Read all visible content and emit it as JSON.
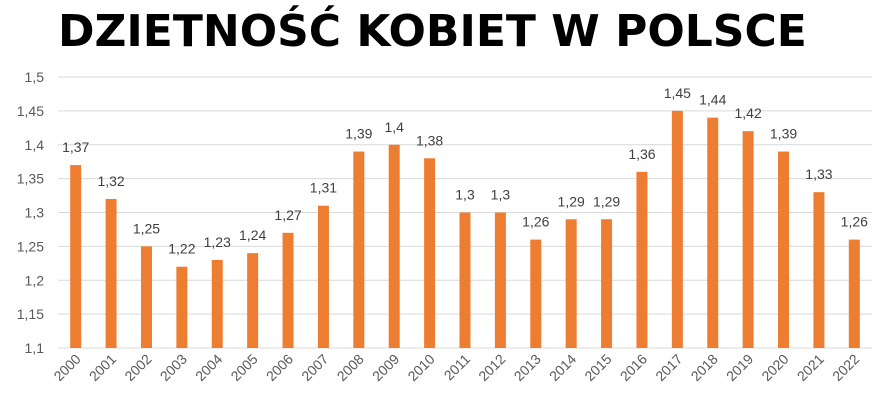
{
  "title": "DZIETNOŚĆ KOBIET W POLSCE",
  "chart_data": {
    "type": "bar",
    "title": "DZIETNOŚĆ KOBIET W POLSCE",
    "xlabel": "",
    "ylabel": "",
    "categories": [
      "2000",
      "2001",
      "2002",
      "2003",
      "2004",
      "2005",
      "2006",
      "2007",
      "2008",
      "2009",
      "2010",
      "2011",
      "2012",
      "2013",
      "2014",
      "2015",
      "2016",
      "2017",
      "2018",
      "2019",
      "2020",
      "2021",
      "2022"
    ],
    "values": [
      1.37,
      1.32,
      1.25,
      1.22,
      1.23,
      1.24,
      1.27,
      1.31,
      1.39,
      1.4,
      1.38,
      1.3,
      1.3,
      1.26,
      1.29,
      1.29,
      1.36,
      1.45,
      1.44,
      1.42,
      1.39,
      1.33,
      1.26
    ],
    "data_labels": [
      "1,37",
      "1,32",
      "1,25",
      "1,22",
      "1,23",
      "1,24",
      "1,27",
      "1,31",
      "1,39",
      "1,4",
      "1,38",
      "1,3",
      "1,3",
      "1,26",
      "1,29",
      "1,29",
      "1,36",
      "1,45",
      "1,44",
      "1,42",
      "1,39",
      "1,33",
      "1,26"
    ],
    "ylim": [
      1.1,
      1.5
    ],
    "yticks": [
      1.1,
      1.15,
      1.2,
      1.25,
      1.3,
      1.35,
      1.4,
      1.45,
      1.5
    ],
    "ytick_labels": [
      "1,1",
      "1,15",
      "1,2",
      "1,25",
      "1,3",
      "1,35",
      "1,4",
      "1,45",
      "1,5"
    ],
    "grid": true,
    "bar_color": "#ED7D31",
    "grid_color": "#D9D9D9"
  }
}
